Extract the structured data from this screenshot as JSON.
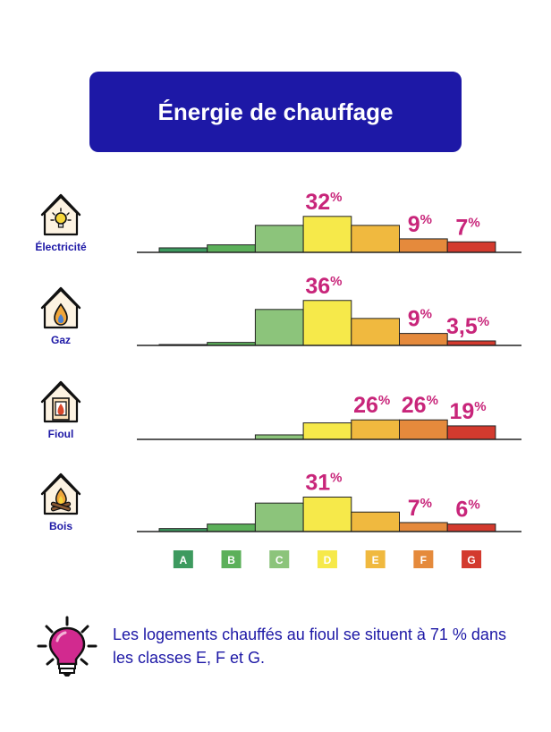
{
  "title": "Énergie de chauffage",
  "colors": {
    "title_bg": "#1d18a6",
    "label": "#1d18a6",
    "highlight": "#c8257a",
    "classes": [
      "#3d9a5f",
      "#5cb05a",
      "#8cc47b",
      "#f6e94a",
      "#f0b93f",
      "#e58a3c",
      "#d33a2e"
    ]
  },
  "icons": [
    "house-lightbulb-icon",
    "house-gas-flame-icon",
    "house-oil-stove-icon",
    "house-wood-fire-icon"
  ],
  "chart_data": {
    "type": "bar",
    "categories": [
      "A",
      "B",
      "C",
      "D",
      "E",
      "F",
      "G"
    ],
    "series": [
      {
        "name": "Électricité",
        "values": [
          1.5,
          2.5,
          9,
          12,
          9,
          4.5,
          3.5
        ],
        "labels": [
          null,
          null,
          null,
          "32%",
          null,
          "9%",
          "7%"
        ]
      },
      {
        "name": "Gaz",
        "values": [
          0.3,
          1,
          12,
          15,
          9,
          4,
          1.5
        ],
        "labels": [
          null,
          null,
          null,
          "36%",
          null,
          "9%",
          "3,5%"
        ]
      },
      {
        "name": "Fioul",
        "values": [
          0,
          0,
          1.5,
          5.5,
          6.5,
          6.5,
          4.5
        ],
        "labels": [
          null,
          null,
          null,
          null,
          "26%",
          "26%",
          "19%"
        ]
      },
      {
        "name": "Bois",
        "values": [
          1,
          2.5,
          9.5,
          11.5,
          6.5,
          3,
          2.5
        ],
        "labels": [
          null,
          null,
          null,
          "31%",
          null,
          "7%",
          "6%"
        ]
      }
    ]
  },
  "footer": {
    "text": "Les logements chauffés au fioul se situent à 71 % dans les classes E, F et G."
  }
}
